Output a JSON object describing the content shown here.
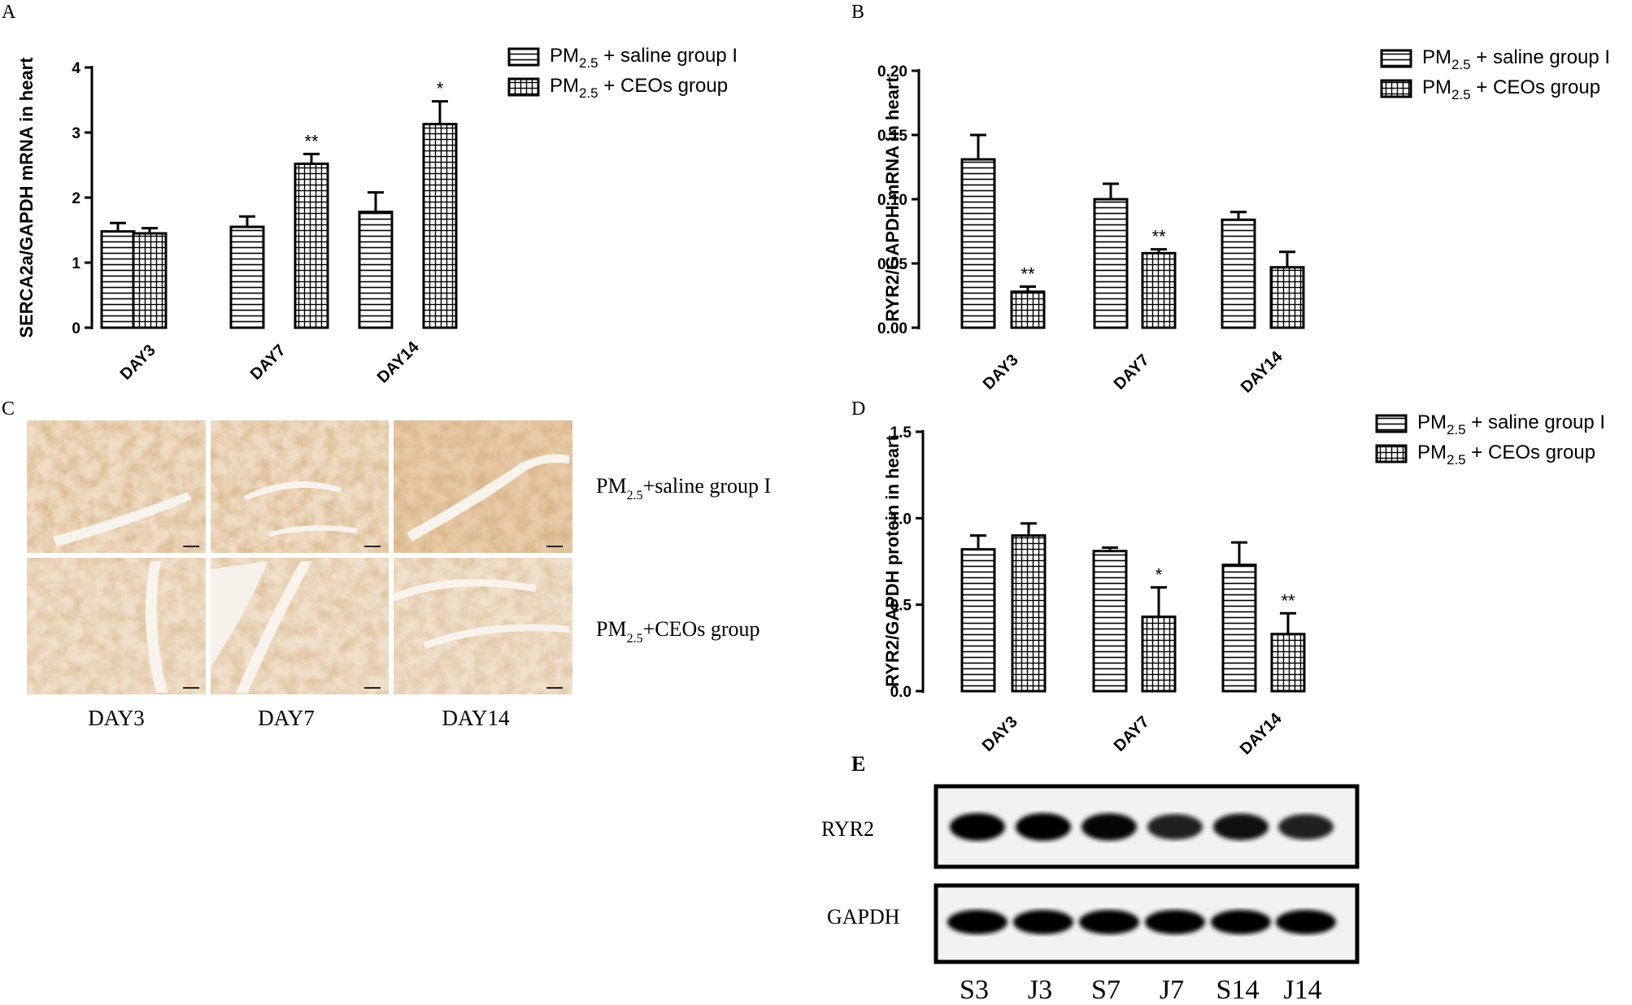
{
  "figure": {
    "panel_letters": {
      "A": "A",
      "B": "B",
      "C": "C",
      "D": "D",
      "E": "E"
    }
  },
  "chart_data": [
    {
      "id": "A",
      "type": "bar",
      "ylabel": "SERCA2a/GAPDH mRNA in heart",
      "ylim": [
        0,
        4
      ],
      "yticks": [
        "0",
        "1",
        "2",
        "3",
        "4"
      ],
      "categories": [
        "DAY3",
        "DAY7",
        "DAY14"
      ],
      "legend_placement": "top-right",
      "series": [
        {
          "name_main": "PM",
          "name_sub": "2.5",
          "name_rest": " + saline group I",
          "pattern": "horizontal-lines",
          "values": [
            1.48,
            1.55,
            1.78
          ],
          "errors": [
            0.13,
            0.16,
            0.3
          ],
          "annotations": [
            "",
            "",
            ""
          ]
        },
        {
          "name_main": "PM",
          "name_sub": "2.5",
          "name_rest": " + CEOs group",
          "pattern": "grid",
          "values": [
            1.45,
            2.52,
            3.13
          ],
          "errors": [
            0.08,
            0.15,
            0.35
          ],
          "annotations": [
            "",
            "**",
            "*"
          ]
        }
      ]
    },
    {
      "id": "B",
      "type": "bar",
      "ylabel": "RYR2/GAPDH mRNA in heart",
      "ylim": [
        0,
        0.2
      ],
      "yticks": [
        "0.00",
        "0.05",
        "0.10",
        "0.15",
        "0.20"
      ],
      "categories": [
        "DAY3",
        "DAY7",
        "DAY14"
      ],
      "legend_placement": "top-right",
      "series": [
        {
          "name_main": "PM",
          "name_sub": "2.5",
          "name_rest": " + saline group I",
          "pattern": "horizontal-lines",
          "values": [
            0.131,
            0.1,
            0.084
          ],
          "errors": [
            0.019,
            0.012,
            0.006
          ],
          "annotations": [
            "",
            "",
            ""
          ]
        },
        {
          "name_main": "PM",
          "name_sub": "2.5",
          "name_rest": " + CEOs group",
          "pattern": "grid",
          "values": [
            0.028,
            0.058,
            0.047
          ],
          "errors": [
            0.004,
            0.003,
            0.012
          ],
          "annotations": [
            "**",
            "**",
            ""
          ]
        }
      ]
    },
    {
      "id": "D",
      "type": "bar",
      "ylabel": "RYR2/GAPDH protein in heart",
      "ylim": [
        0,
        1.5
      ],
      "yticks": [
        "0.0",
        "0.5",
        "1.0",
        "1.5"
      ],
      "categories": [
        "DAY3",
        "DAY7",
        "DAY14"
      ],
      "legend_placement": "top-right",
      "series": [
        {
          "name_main": "PM",
          "name_sub": "2.5",
          "name_rest": " + saline group I",
          "pattern": "horizontal-lines",
          "values": [
            0.82,
            0.81,
            0.73
          ],
          "errors": [
            0.08,
            0.02,
            0.13
          ],
          "annotations": [
            "",
            "",
            ""
          ]
        },
        {
          "name_main": "PM",
          "name_sub": "2.5",
          "name_rest": " + CEOs group",
          "pattern": "grid",
          "values": [
            0.9,
            0.43,
            0.33
          ],
          "errors": [
            0.07,
            0.17,
            0.12
          ],
          "annotations": [
            "",
            "*",
            "**"
          ]
        }
      ]
    }
  ],
  "histology": {
    "row_labels": [
      {
        "main": "PM",
        "sub": "2.5",
        "rest": "+saline group I"
      },
      {
        "main": "PM",
        "sub": "2.5",
        "rest": "+CEOs group"
      }
    ],
    "col_labels": [
      "DAY3",
      "DAY7",
      "DAY14"
    ],
    "stain_color": "#d4a77c",
    "background_color": "#f1e2cd"
  },
  "western_blot": {
    "bands": [
      "RYR2",
      "GAPDH"
    ],
    "lanes": [
      "S3",
      "J3",
      "S7",
      "J7",
      "S14",
      "J14"
    ],
    "ryr2_intensity": [
      1.0,
      1.0,
      0.95,
      0.7,
      0.85,
      0.7
    ],
    "gapdh_intensity": [
      1.0,
      1.0,
      1.0,
      1.0,
      1.0,
      1.0
    ]
  }
}
